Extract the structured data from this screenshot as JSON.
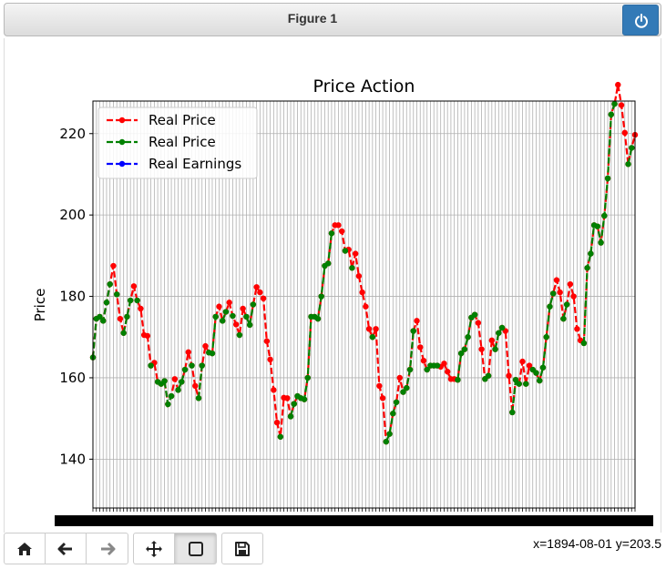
{
  "window": {
    "title": "Figure 1"
  },
  "toolbar": {
    "buttons": [
      "home-icon",
      "back-arrow-icon",
      "forward-arrow-icon",
      "pan-icon",
      "zoom-rect-icon",
      "save-icon"
    ],
    "coords": "x=1894-08-01 y=203.5"
  },
  "chart_data": {
    "type": "line",
    "title": "Price Action",
    "xlabel": "",
    "ylabel": "Price",
    "ylim": [
      128,
      228
    ],
    "yticks": [
      140,
      160,
      180,
      200,
      220
    ],
    "grid": true,
    "legend_position": "upper-left",
    "x_tick_labels": "dense overlapping date labels (unreadable)",
    "x_start_index": 0,
    "series": [
      {
        "name": "Real Price",
        "color": "#ff0000",
        "style": "dashed",
        "marker": "o",
        "values": [
          165,
          174.5,
          175,
          174,
          178.5,
          183,
          187.5,
          180.5,
          174.5,
          171,
          175,
          179,
          182.5,
          179,
          177,
          170.5,
          170.3,
          163,
          163.7,
          159,
          158.5,
          159.2,
          153.5,
          155.5,
          159.7,
          157,
          159,
          162,
          166.3,
          163,
          158,
          155,
          163,
          167.8,
          166.2,
          166,
          175,
          177.5,
          174,
          176.2,
          178.5,
          175.2,
          173.1,
          170.5,
          177,
          175,
          173,
          178,
          182.3,
          181,
          179.5,
          169,
          164.5,
          157,
          149,
          145.5,
          155.1,
          155,
          150.5,
          153.6,
          155.5,
          155,
          154.7,
          160,
          175,
          175,
          174.5,
          180,
          187.5,
          188.1,
          195.5,
          197.5,
          197.5,
          196,
          191.2,
          191.5,
          187,
          190.5,
          185,
          181,
          177.5,
          172,
          170,
          172,
          158,
          155,
          144.3,
          146.2,
          151.2,
          154,
          160,
          156.5,
          157.5,
          162,
          171.5,
          174,
          167.5,
          164.2,
          162,
          163,
          163,
          163,
          162.7,
          163.5,
          161.5,
          159.7,
          159.7,
          159.5,
          166,
          167,
          170,
          174.8,
          175.5,
          173.5,
          167,
          159.7,
          160.5,
          169.2,
          167,
          171,
          172.3,
          171.5,
          160.5,
          151.5,
          159.5,
          158.5,
          164,
          158.5,
          163,
          162,
          161.2,
          159.3,
          162.5,
          170,
          177.5,
          180.7,
          184,
          181,
          174.5,
          178,
          183,
          180,
          172,
          169.2,
          168.5,
          187,
          190.5,
          197.5,
          197.2,
          193.2,
          199.8,
          209,
          224.7,
          227.3,
          232,
          227,
          220.2,
          212.5,
          216.5,
          219.7
        ]
      },
      {
        "name": "Real Price",
        "color": "#008000",
        "style": "dashed",
        "marker": "o",
        "values": [
          165,
          174.5,
          175,
          174,
          178.5,
          183,
          null,
          180.5,
          null,
          171,
          175,
          179,
          null,
          179,
          null,
          null,
          null,
          163,
          null,
          159,
          158.5,
          159.2,
          153.5,
          155.5,
          null,
          157,
          159,
          162,
          null,
          163,
          null,
          155,
          163,
          null,
          166.2,
          166,
          175,
          null,
          174,
          176.2,
          null,
          175.2,
          null,
          170.5,
          null,
          175,
          173,
          178,
          null,
          null,
          null,
          null,
          null,
          null,
          null,
          145.5,
          null,
          null,
          150.5,
          153.6,
          155.5,
          155,
          154.7,
          160,
          175,
          175,
          174.5,
          180,
          187.5,
          188.1,
          195.5,
          null,
          null,
          null,
          191.2,
          null,
          187,
          null,
          null,
          null,
          null,
          null,
          170,
          null,
          null,
          null,
          144.3,
          146.2,
          151.2,
          154,
          null,
          156.5,
          157.5,
          162,
          171.5,
          null,
          null,
          null,
          162,
          163,
          163,
          163,
          null,
          null,
          null,
          null,
          null,
          159.5,
          166,
          167,
          170,
          174.8,
          175.5,
          null,
          null,
          159.7,
          160.5,
          null,
          167,
          171,
          172.3,
          null,
          null,
          151.5,
          159.5,
          158.5,
          null,
          158.5,
          null,
          162,
          161.2,
          159.3,
          162.5,
          170,
          177.5,
          180.7,
          null,
          null,
          174.5,
          178,
          null,
          null,
          null,
          null,
          168.5,
          187,
          190.5,
          197.5,
          197.2,
          193.2,
          199.8,
          209,
          224.7,
          227.3,
          null,
          null,
          null,
          212.5,
          216.5,
          null
        ]
      },
      {
        "name": "Real Earnings",
        "color": "#0000ff",
        "style": "dashed",
        "marker": "o",
        "values": []
      }
    ]
  }
}
